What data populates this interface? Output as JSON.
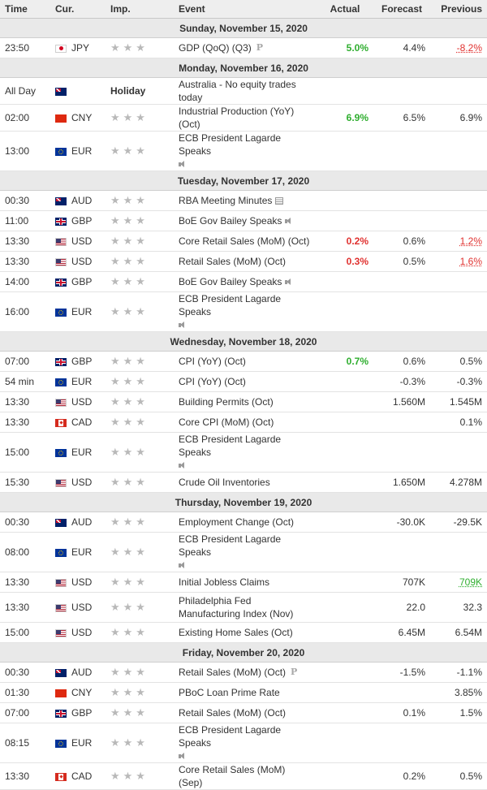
{
  "header": {
    "time": "Time",
    "currency": "Cur.",
    "importance": "Imp.",
    "event": "Event",
    "actual": "Actual",
    "forecast": "Forecast",
    "previous": "Previous"
  },
  "importance_stars": "★★★",
  "days": [
    {
      "label": "Sunday, November 15, 2020",
      "events": [
        {
          "time": "23:50",
          "flag": "jp",
          "currency": "JPY",
          "event": "GDP (QoQ) (Q3)",
          "icon": "preliminary-icon",
          "icon_text": "P",
          "actual": "5.0%",
          "actual_color": "green",
          "forecast": "4.4%",
          "previous": "-8.2%",
          "previous_color": "red-revised",
          "tall": false
        }
      ]
    },
    {
      "label": "Monday, November 16, 2020",
      "events": [
        {
          "time": "All Day",
          "flag": "au",
          "currency": "",
          "holiday": "Holiday",
          "event": "Australia - No equity trades today",
          "actual": "",
          "forecast": "",
          "previous": "",
          "tall": false
        },
        {
          "time": "02:00",
          "flag": "cn",
          "currency": "CNY",
          "event": "Industrial Production (YoY) (Oct)",
          "actual": "6.9%",
          "actual_color": "green",
          "forecast": "6.5%",
          "previous": "6.9%",
          "tall": false
        },
        {
          "time": "13:00",
          "flag": "eu",
          "currency": "EUR",
          "event": "ECB President Lagarde Speaks",
          "icon": "speaker-icon",
          "icon_newline": true,
          "actual": "",
          "forecast": "",
          "previous": "",
          "tall": true
        }
      ]
    },
    {
      "label": "Tuesday, November 17, 2020",
      "events": [
        {
          "time": "00:30",
          "flag": "au",
          "currency": "AUD",
          "event": "RBA Meeting Minutes",
          "icon": "document-icon",
          "actual": "",
          "forecast": "",
          "previous": "",
          "tall": false
        },
        {
          "time": "11:00",
          "flag": "gb",
          "currency": "GBP",
          "event": "BoE Gov Bailey Speaks",
          "icon": "speaker-icon",
          "actual": "",
          "forecast": "",
          "previous": "",
          "tall": false
        },
        {
          "time": "13:30",
          "flag": "us",
          "currency": "USD",
          "event": "Core Retail Sales (MoM) (Oct)",
          "actual": "0.2%",
          "actual_color": "red",
          "forecast": "0.6%",
          "previous": "1.2%",
          "previous_color": "red-revised",
          "tall": false
        },
        {
          "time": "13:30",
          "flag": "us",
          "currency": "USD",
          "event": "Retail Sales (MoM) (Oct)",
          "actual": "0.3%",
          "actual_color": "red",
          "forecast": "0.5%",
          "previous": "1.6%",
          "previous_color": "red-revised",
          "tall": false
        },
        {
          "time": "14:00",
          "flag": "gb",
          "currency": "GBP",
          "event": "BoE Gov Bailey Speaks",
          "icon": "speaker-icon",
          "actual": "",
          "forecast": "",
          "previous": "",
          "tall": false
        },
        {
          "time": "16:00",
          "flag": "eu",
          "currency": "EUR",
          "event": "ECB President Lagarde Speaks",
          "icon": "speaker-icon",
          "icon_newline": true,
          "actual": "",
          "forecast": "",
          "previous": "",
          "tall": true
        }
      ]
    },
    {
      "label": "Wednesday, November 18, 2020",
      "events": [
        {
          "time": "07:00",
          "flag": "gb",
          "currency": "GBP",
          "event": "CPI (YoY) (Oct)",
          "actual": "0.7%",
          "actual_color": "green",
          "forecast": "0.6%",
          "previous": "0.5%",
          "tall": false
        },
        {
          "time": "54 min",
          "flag": "eu",
          "currency": "EUR",
          "event": "CPI (YoY) (Oct)",
          "actual": "",
          "forecast": "-0.3%",
          "previous": "-0.3%",
          "tall": false
        },
        {
          "time": "13:30",
          "flag": "us",
          "currency": "USD",
          "event": "Building Permits (Oct)",
          "actual": "",
          "forecast": "1.560M",
          "previous": "1.545M",
          "tall": false
        },
        {
          "time": "13:30",
          "flag": "ca",
          "currency": "CAD",
          "event": "Core CPI (MoM) (Oct)",
          "actual": "",
          "forecast": "",
          "previous": "0.1%",
          "tall": false
        },
        {
          "time": "15:00",
          "flag": "eu",
          "currency": "EUR",
          "event": "ECB President Lagarde Speaks",
          "icon": "speaker-icon",
          "icon_newline": true,
          "actual": "",
          "forecast": "",
          "previous": "",
          "tall": true
        },
        {
          "time": "15:30",
          "flag": "us",
          "currency": "USD",
          "event": "Crude Oil Inventories",
          "actual": "",
          "forecast": "1.650M",
          "previous": "4.278M",
          "tall": false
        }
      ]
    },
    {
      "label": "Thursday, November 19, 2020",
      "events": [
        {
          "time": "00:30",
          "flag": "au",
          "currency": "AUD",
          "event": "Employment Change (Oct)",
          "actual": "",
          "forecast": "-30.0K",
          "previous": "-29.5K",
          "tall": false
        },
        {
          "time": "08:00",
          "flag": "eu",
          "currency": "EUR",
          "event": "ECB President Lagarde Speaks",
          "icon": "speaker-icon",
          "icon_newline": true,
          "actual": "",
          "forecast": "",
          "previous": "",
          "tall": true
        },
        {
          "time": "13:30",
          "flag": "us",
          "currency": "USD",
          "event": "Initial Jobless Claims",
          "actual": "",
          "forecast": "707K",
          "previous": "709K",
          "previous_color": "green-revised",
          "tall": false
        },
        {
          "time": "13:30",
          "flag": "us",
          "currency": "USD",
          "event": "Philadelphia Fed Manufacturing Index (Nov)",
          "actual": "",
          "forecast": "22.0",
          "previous": "32.3",
          "tall": true
        },
        {
          "time": "15:00",
          "flag": "us",
          "currency": "USD",
          "event": "Existing Home Sales (Oct)",
          "actual": "",
          "forecast": "6.45M",
          "previous": "6.54M",
          "tall": false
        }
      ]
    },
    {
      "label": "Friday, November 20, 2020",
      "events": [
        {
          "time": "00:30",
          "flag": "au",
          "currency": "AUD",
          "event": "Retail Sales (MoM) (Oct)",
          "icon": "preliminary-icon",
          "icon_text": "P",
          "actual": "",
          "forecast": "-1.5%",
          "previous": "-1.1%",
          "tall": false
        },
        {
          "time": "01:30",
          "flag": "cn",
          "currency": "CNY",
          "event": "PBoC Loan Prime Rate",
          "actual": "",
          "forecast": "",
          "previous": "3.85%",
          "tall": false
        },
        {
          "time": "07:00",
          "flag": "gb",
          "currency": "GBP",
          "event": "Retail Sales (MoM) (Oct)",
          "actual": "",
          "forecast": "0.1%",
          "previous": "1.5%",
          "tall": false
        },
        {
          "time": "08:15",
          "flag": "eu",
          "currency": "EUR",
          "event": "ECB President Lagarde Speaks",
          "icon": "speaker-icon",
          "icon_newline": true,
          "actual": "",
          "forecast": "",
          "previous": "",
          "tall": true
        },
        {
          "time": "13:30",
          "flag": "ca",
          "currency": "CAD",
          "event": "Core Retail Sales (MoM) (Sep)",
          "actual": "",
          "forecast": "0.2%",
          "previous": "0.5%",
          "tall": false
        }
      ]
    }
  ]
}
